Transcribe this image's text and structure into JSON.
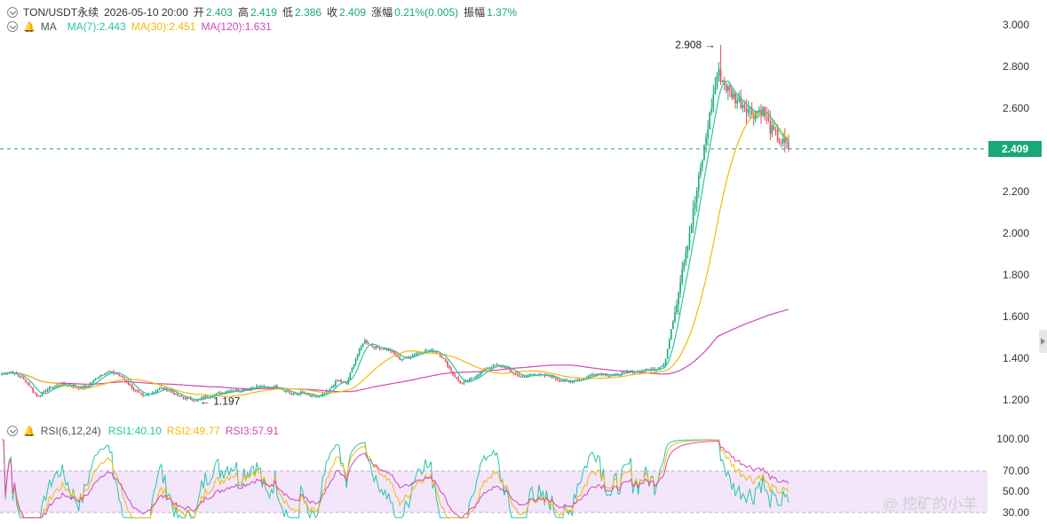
{
  "header": {
    "symbol": "TON/USDT永续",
    "datetime": "2026-05-10 20:00",
    "open_label": "开",
    "open": "2.403",
    "high_label": "高",
    "high": "2.419",
    "low_label": "低",
    "low": "2.386",
    "close_label": "收",
    "close": "2.409",
    "change_label": "涨幅",
    "change": "0.21%(0.005)",
    "amp_label": "振幅",
    "amp": "1.37%"
  },
  "ma_legend": {
    "label": "MA",
    "ma7": "MA(7):2.443",
    "ma30": "MA(30):2.451",
    "ma120": "MA(120):1.631"
  },
  "rsi_legend": {
    "label": "RSI(6,12,24)",
    "rsi1": "RSI1:40.10",
    "rsi2": "RSI2:49.77",
    "rsi3": "RSI3:57.91"
  },
  "colors": {
    "up": "#1aa87a",
    "down": "#e0525c",
    "ma7": "#26c6a6",
    "ma30": "#f0b90b",
    "ma120": "#d048b6",
    "rsi_band": "#f3e6fb"
  },
  "watermark": "@ 挖矿的小羊",
  "chart_data": [
    {
      "type": "candlestick",
      "title": "TON/USDT永续",
      "ylim": [
        1.15,
        3.05
      ],
      "y_ticks": [
        "3.000",
        "2.800",
        "2.600",
        "2.400",
        "2.200",
        "2.000",
        "1.800",
        "1.600",
        "1.400",
        "1.200"
      ],
      "last_price": "2.409",
      "annotations": {
        "high": "2.908",
        "low": "1.197"
      },
      "price_path": [
        1.33,
        1.34,
        1.32,
        1.28,
        1.22,
        1.25,
        1.27,
        1.28,
        1.27,
        1.26,
        1.28,
        1.32,
        1.34,
        1.33,
        1.3,
        1.25,
        1.22,
        1.24,
        1.26,
        1.25,
        1.22,
        1.21,
        1.2,
        1.22,
        1.23,
        1.24,
        1.25,
        1.25,
        1.26,
        1.27,
        1.26,
        1.27,
        1.25,
        1.23,
        1.24,
        1.22,
        1.22,
        1.25,
        1.3,
        1.28,
        1.4,
        1.49,
        1.46,
        1.45,
        1.44,
        1.4,
        1.41,
        1.43,
        1.44,
        1.44,
        1.4,
        1.33,
        1.28,
        1.3,
        1.33,
        1.36,
        1.37,
        1.36,
        1.33,
        1.31,
        1.33,
        1.32,
        1.32,
        1.3,
        1.29,
        1.3,
        1.31,
        1.33,
        1.33,
        1.32,
        1.33,
        1.34,
        1.34,
        1.35,
        1.35,
        1.38,
        1.6,
        1.85,
        2.05,
        2.3,
        2.55,
        2.78,
        2.7,
        2.65,
        2.62,
        2.58,
        2.6,
        2.5,
        2.45,
        2.41
      ],
      "ma7_end": 2.443,
      "ma30_end": 2.451,
      "ma120_end": 1.631
    },
    {
      "type": "line",
      "title": "RSI(6,12,24)",
      "ylim": [
        30,
        100
      ],
      "y_ticks": [
        "100.00",
        "70.00",
        "50.00",
        "30.00"
      ],
      "band": [
        30,
        70
      ],
      "series": [
        {
          "name": "RSI1",
          "last": 40.1
        },
        {
          "name": "RSI2",
          "last": 49.77
        },
        {
          "name": "RSI3",
          "last": 57.91
        }
      ]
    }
  ]
}
